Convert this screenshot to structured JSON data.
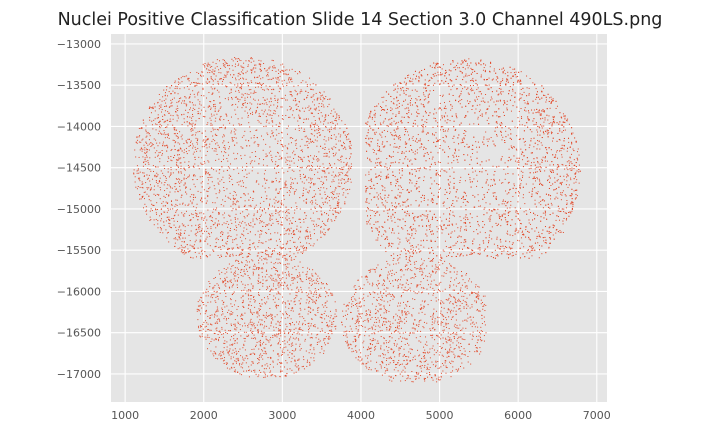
{
  "chart_data": {
    "type": "scatter",
    "title": "Nuclei Positive Classification Slide  14 Section 3.0 Channel 490LS.png",
    "xlabel": "",
    "ylabel": "",
    "xlim": [
      820,
      7130
    ],
    "ylim": [
      -17340,
      -12880
    ],
    "x_ticks": [
      1000,
      2000,
      3000,
      4000,
      5000,
      6000,
      7000
    ],
    "x_tick_labels": [
      "1000",
      "2000",
      "3000",
      "4000",
      "5000",
      "6000",
      "7000"
    ],
    "y_ticks": [
      -13000,
      -13500,
      -14000,
      -14500,
      -15000,
      -15500,
      -16000,
      -16500,
      -17000
    ],
    "y_tick_labels": [
      "−13000",
      "−13500",
      "−14000",
      "−14500",
      "−15000",
      "−15500",
      "−16000",
      "−16500",
      "−17000"
    ],
    "grid": true,
    "legend": "none",
    "colors": {
      "points": "#e24a2b",
      "background": "#e5e5e5",
      "grid": "#ffffff"
    },
    "regions": [
      {
        "region": "left-hemisphere",
        "x_range": [
          1100,
          3900
        ],
        "y_range": [
          -15600,
          -13150
        ],
        "approx_points": 3200
      },
      {
        "region": "right-hemisphere",
        "x_range": [
          4050,
          6800
        ],
        "y_range": [
          -15600,
          -13180
        ],
        "approx_points": 3600
      },
      {
        "region": "lower-left-lobe",
        "x_range": [
          1900,
          3700
        ],
        "y_range": [
          -17050,
          -15600
        ],
        "approx_points": 1300
      },
      {
        "region": "lower-right-lobe",
        "x_range": [
          3700,
          5600
        ],
        "y_range": [
          -17100,
          -15600
        ],
        "approx_points": 1300
      }
    ]
  }
}
